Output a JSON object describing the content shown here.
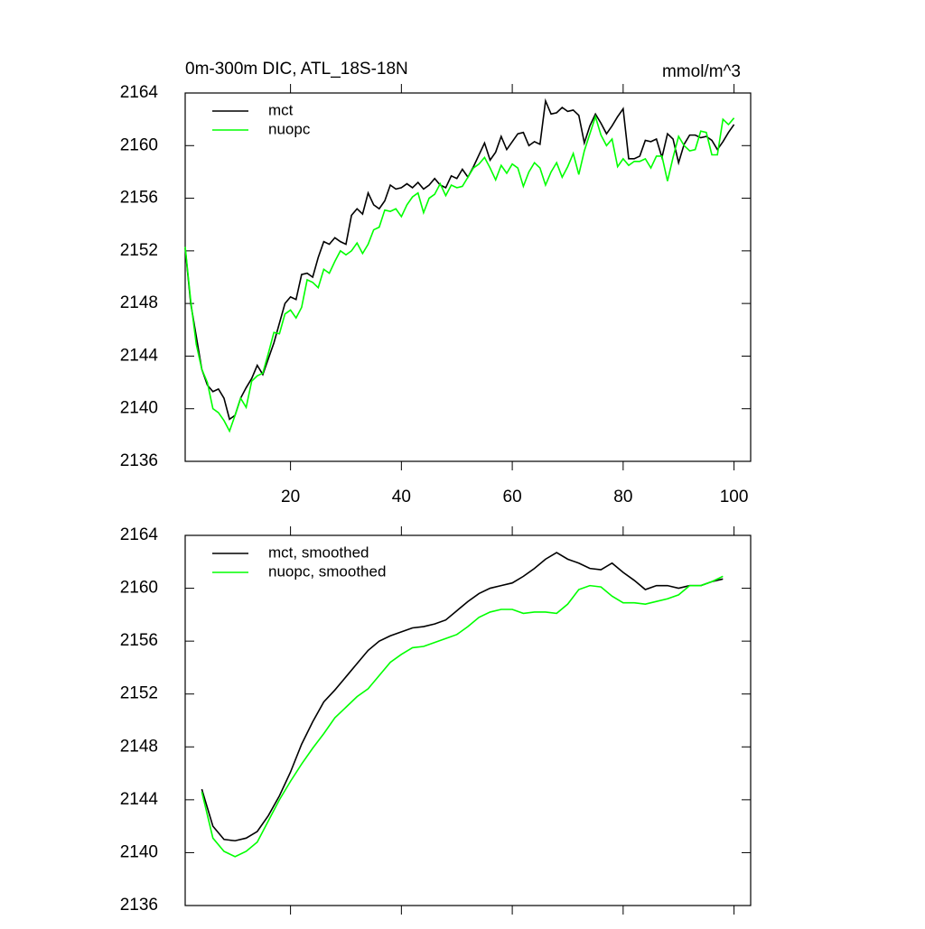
{
  "chart_data": [
    {
      "type": "line",
      "title": "0m-300m DIC, ATL_18S-18N",
      "units": "mmol/m^3",
      "x": [
        1,
        2,
        3,
        4,
        5,
        6,
        7,
        8,
        9,
        10,
        11,
        12,
        13,
        14,
        15,
        16,
        17,
        18,
        19,
        20,
        21,
        22,
        23,
        24,
        25,
        26,
        27,
        28,
        29,
        30,
        31,
        32,
        33,
        34,
        35,
        36,
        37,
        38,
        39,
        40,
        41,
        42,
        43,
        44,
        45,
        46,
        47,
        48,
        49,
        50,
        51,
        52,
        53,
        54,
        55,
        56,
        57,
        58,
        59,
        60,
        61,
        62,
        63,
        64,
        65,
        66,
        67,
        68,
        69,
        70,
        71,
        72,
        73,
        74,
        75,
        76,
        77,
        78,
        79,
        80,
        81,
        82,
        83,
        84,
        85,
        86,
        87,
        88,
        89,
        90,
        91,
        92,
        93,
        94,
        95,
        96,
        97,
        98,
        99,
        100
      ],
      "series": [
        {
          "name": "mct",
          "color": "#000000",
          "values": [
            2152.2,
            2148,
            2145.5,
            2143,
            2141.8,
            2141.3,
            2141.5,
            2140.8,
            2139.2,
            2139.5,
            2140.8,
            2141.6,
            2142.3,
            2143.3,
            2142.6,
            2143.8,
            2145,
            2146.5,
            2148,
            2148.5,
            2148.3,
            2150.2,
            2150.3,
            2150,
            2151.5,
            2152.7,
            2152.5,
            2153,
            2152.7,
            2152.5,
            2154.7,
            2155.2,
            2154.8,
            2156.4,
            2155.5,
            2155.2,
            2155.8,
            2157,
            2156.7,
            2156.8,
            2157.1,
            2156.8,
            2157.2,
            2156.7,
            2157,
            2157.5,
            2157,
            2156.8,
            2157.7,
            2157.5,
            2158.2,
            2157.6,
            2158.4,
            2159.3,
            2160.2,
            2158.9,
            2159.5,
            2160.7,
            2159.7,
            2160.3,
            2160.9,
            2161,
            2160,
            2160.3,
            2160.1,
            2163.4,
            2162.4,
            2162.5,
            2162.9,
            2162.6,
            2162.7,
            2162.3,
            2160.2,
            2161.5,
            2162.4,
            2161.7,
            2160.9,
            2161.5,
            2162.2,
            2162.8,
            2159,
            2159,
            2159.2,
            2160.4,
            2160.3,
            2160.5,
            2159.1,
            2160.9,
            2160.5,
            2158.7,
            2160.1,
            2160.8,
            2160.8,
            2160.6,
            2160.7,
            2160.4,
            2159.7,
            2160.3,
            2161,
            2161.6
          ]
        },
        {
          "name": "nuopc",
          "color": "#00ff00",
          "values": [
            2152.3,
            2148.2,
            2144.9,
            2143,
            2142,
            2140,
            2139.7,
            2139.1,
            2138.3,
            2139.5,
            2140.8,
            2140.1,
            2142.1,
            2142.5,
            2142.7,
            2144.2,
            2145.8,
            2145.7,
            2147.2,
            2147.5,
            2146.9,
            2147.7,
            2149.8,
            2149.6,
            2149.2,
            2150.6,
            2150.3,
            2151.2,
            2152,
            2151.7,
            2152,
            2152.6,
            2151.8,
            2152.5,
            2153.6,
            2153.8,
            2155.1,
            2155,
            2155.2,
            2154.6,
            2155.5,
            2156.1,
            2156.4,
            2154.9,
            2156,
            2156.3,
            2157.1,
            2156.2,
            2157,
            2156.8,
            2156.9,
            2157.6,
            2158.3,
            2158.6,
            2159.1,
            2158.3,
            2157.4,
            2158.5,
            2157.9,
            2158.6,
            2158.3,
            2156.9,
            2158,
            2158.7,
            2158.3,
            2157,
            2158,
            2158.7,
            2157.6,
            2158.4,
            2159.4,
            2157.8,
            2159.6,
            2160.9,
            2162.2,
            2160.8,
            2160,
            2160.5,
            2158.4,
            2159,
            2158.5,
            2158.8,
            2158.8,
            2159,
            2158.3,
            2159.2,
            2159.2,
            2157.3,
            2159.1,
            2160.7,
            2160,
            2159.6,
            2159.7,
            2161.1,
            2161,
            2159.3,
            2159.3,
            2162,
            2161.6,
            2162.1
          ]
        }
      ],
      "xlim": [
        1,
        103
      ],
      "xticks": [
        20,
        40,
        60,
        80,
        100
      ],
      "show_xtick_labels": true,
      "ylim": [
        2136,
        2164
      ],
      "yticks": [
        2136,
        2140,
        2144,
        2148,
        2152,
        2156,
        2160,
        2164
      ]
    },
    {
      "type": "line",
      "x": [
        4,
        6,
        8,
        10,
        12,
        14,
        16,
        18,
        20,
        22,
        24,
        26,
        28,
        30,
        32,
        34,
        36,
        38,
        40,
        42,
        44,
        46,
        48,
        50,
        52,
        54,
        56,
        58,
        60,
        62,
        64,
        66,
        68,
        70,
        72,
        74,
        76,
        78,
        80,
        82,
        84,
        86,
        88,
        90,
        92,
        94,
        96,
        98
      ],
      "series": [
        {
          "name": "mct, smoothed",
          "color": "#000000",
          "values": [
            2144.8,
            2142,
            2141,
            2140.9,
            2141.1,
            2141.6,
            2142.8,
            2144.3,
            2146.1,
            2148.2,
            2149.9,
            2151.4,
            2152.3,
            2153.3,
            2154.3,
            2155.3,
            2156,
            2156.4,
            2156.7,
            2157,
            2157.1,
            2157.3,
            2157.6,
            2158.3,
            2159,
            2159.6,
            2160,
            2160.2,
            2160.4,
            2160.9,
            2161.5,
            2162.2,
            2162.7,
            2162.2,
            2161.9,
            2161.5,
            2161.4,
            2161.9,
            2161.2,
            2160.6,
            2159.9,
            2160.2,
            2160.2,
            2160,
            2160.2,
            2160.2,
            2160.5,
            2160.7
          ]
        },
        {
          "name": "nuopc, smoothed",
          "color": "#00ff00",
          "values": [
            2144.6,
            2141.1,
            2140.1,
            2139.7,
            2140.1,
            2140.8,
            2142.4,
            2144,
            2145.4,
            2146.7,
            2147.9,
            2149,
            2150.2,
            2151,
            2151.8,
            2152.4,
            2153.4,
            2154.4,
            2155,
            2155.5,
            2155.6,
            2155.9,
            2156.2,
            2156.5,
            2157.1,
            2157.8,
            2158.2,
            2158.4,
            2158.4,
            2158.1,
            2158.2,
            2158.2,
            2158.1,
            2158.8,
            2159.9,
            2160.2,
            2160.1,
            2159.4,
            2158.9,
            2158.9,
            2158.8,
            2159,
            2159.2,
            2159.5,
            2160.2,
            2160.2,
            2160.5,
            2160.9
          ]
        }
      ],
      "xlim": [
        1,
        103
      ],
      "xticks": [
        20,
        40,
        60,
        80,
        100
      ],
      "show_xtick_labels": false,
      "ylim": [
        2136,
        2164
      ],
      "yticks": [
        2136,
        2140,
        2144,
        2148,
        2152,
        2156,
        2160,
        2164
      ]
    }
  ]
}
